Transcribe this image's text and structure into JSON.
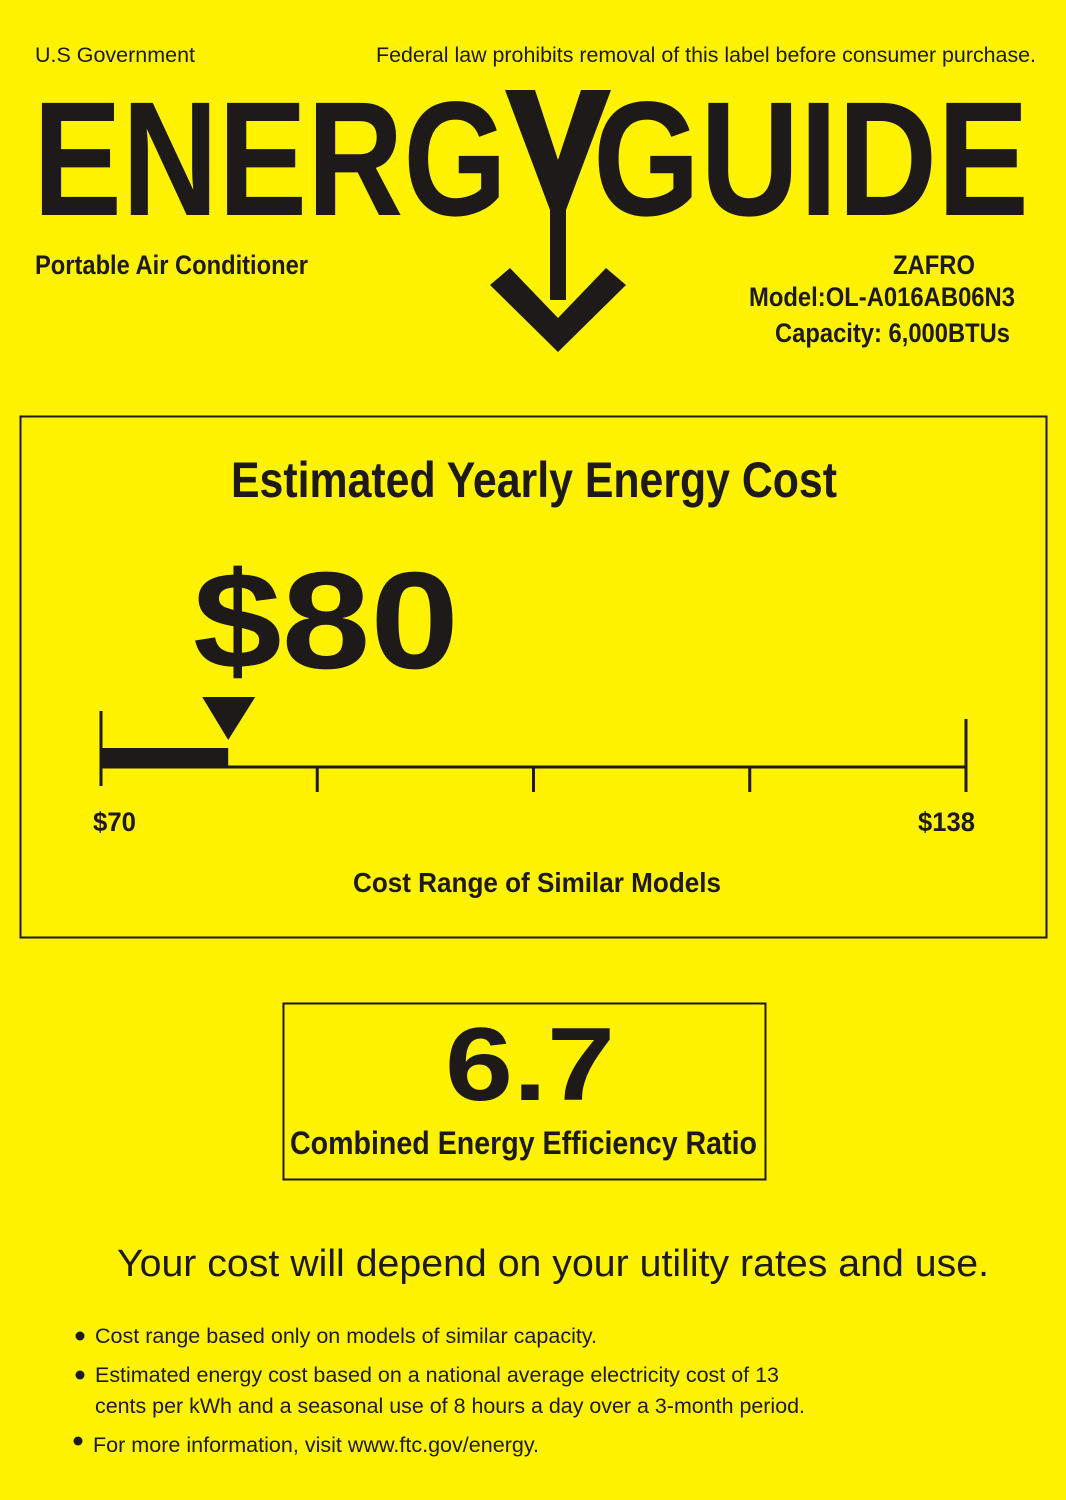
{
  "header": {
    "government": "U.S Government",
    "legal_notice": "Federal law prohibits removal of this label before consumer purchase.",
    "title_left": "ENERG",
    "title_right": "GUIDE",
    "title_icon": "y-arrow-down-icon",
    "product_type": "Portable Air Conditioner",
    "brand": "ZAFRO",
    "model": "Model:OL-A016AB06N3",
    "capacity": "Capacity: 6,000BTUs"
  },
  "cost": {
    "heading": "Estimated Yearly Energy Cost",
    "value_label": "$80",
    "value": 80,
    "range_min": 70,
    "range_max": 138,
    "min_label": "$70",
    "max_label": "$138",
    "range_caption": "Cost Range of Similar Models"
  },
  "efficiency": {
    "value": "6.7",
    "label": "Combined Energy Efficiency Ratio"
  },
  "footer": {
    "note": "Your cost will depend on your utility rates and use.",
    "bullets": [
      "Cost range based only on models of similar capacity.",
      "Estimated energy cost based on a national average electricity cost of 13",
      "cents per kWh and a seasonal use of 8 hours a day over a 3-month period.",
      "For more information, visit www.ftc.gov/energy."
    ]
  },
  "colors": {
    "background": "#fff200",
    "ink": "#1e1a1a"
  }
}
